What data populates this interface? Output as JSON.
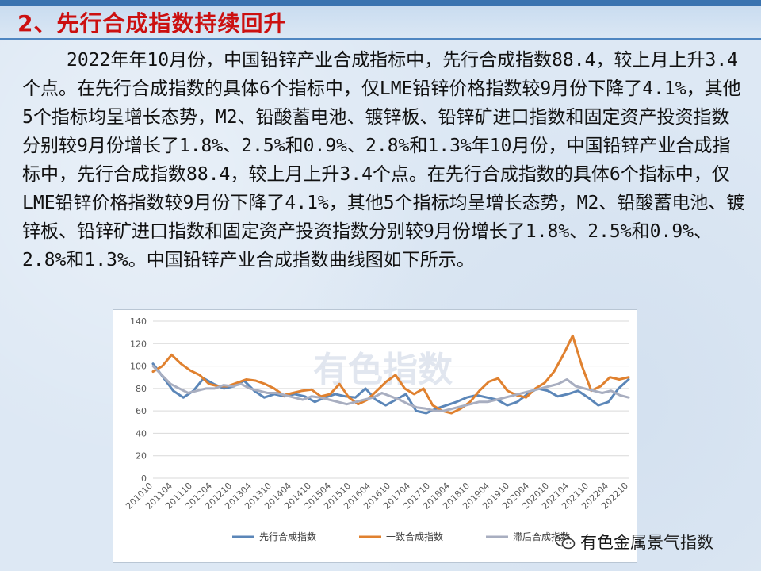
{
  "slide": {
    "title": "2、先行合成指数持续回升",
    "body": "2022年年10月份，中国铅锌产业合成指标中，先行合成指数88.4，较上月上升3.4个点。在先行合成指数的具体6个指标中，仅LME铅锌价格指数较9月份下降了4.1%，其他5个指标均呈增长态势，M2、铅酸蓄电池、镀锌板、铅锌矿进口指数和固定资产投资指数分别较9月份增长了1.8%、2.5%和0.9%、2.8%和1.3%年10月份，中国铅锌产业合成指标中，先行合成指数88.4，较上月上升3.4个点。在先行合成指数的具体6个指标中，仅LME铅锌价格指数较9月份下降了4.1%，其他5个指标均呈增长态势，M2、铅酸蓄电池、镀锌板、铅锌矿进口指数和固定资产投资指数分别较9月份增长了1.8%、2.5%和0.9%、2.8%和1.3%。中国铅锌产业合成指数曲线图如下所示。"
  },
  "footer": {
    "brand": "有色金属景气指数",
    "icon": "wechat-icon"
  },
  "watermark": "有色指数",
  "colors": {
    "title": "#cc1010",
    "leading": "#5b86b8",
    "coincident": "#e0812f",
    "lagging": "#a8aec0"
  },
  "chart_data": {
    "type": "line",
    "title": "",
    "xlabel": "",
    "ylabel": "",
    "ylim": [
      0,
      140
    ],
    "yticks": [
      0,
      20,
      40,
      60,
      80,
      100,
      120,
      140
    ],
    "grid": true,
    "legend_position": "bottom",
    "x_tick_labels": [
      "201010",
      "201104",
      "201110",
      "201204",
      "201210",
      "201304",
      "201310",
      "201404",
      "201410",
      "201504",
      "201510",
      "201604",
      "201610",
      "201704",
      "201710",
      "201804",
      "201810",
      "201904",
      "201910",
      "202004",
      "202010",
      "202104",
      "202110",
      "202204",
      "202210"
    ],
    "series": [
      {
        "name": "先行合成指数",
        "color": "#5b86b8",
        "values": [
          102,
          90,
          78,
          72,
          78,
          89,
          84,
          80,
          82,
          87,
          78,
          72,
          75,
          73,
          75,
          73,
          68,
          72,
          75,
          73,
          72,
          80,
          70,
          65,
          70,
          75,
          60,
          58,
          62,
          65,
          68,
          72,
          74,
          72,
          70,
          65,
          68,
          75,
          80,
          78,
          73,
          75,
          78,
          72,
          65,
          68,
          80,
          88
        ]
      },
      {
        "name": "一致合成指数",
        "color": "#e0812f",
        "values": [
          95,
          100,
          110,
          102,
          96,
          92,
          84,
          82,
          82,
          85,
          88,
          87,
          84,
          80,
          74,
          76,
          78,
          79,
          73,
          75,
          84,
          72,
          66,
          70,
          78,
          86,
          92,
          80,
          75,
          80,
          65,
          60,
          58,
          62,
          68,
          78,
          86,
          89,
          78,
          74,
          72,
          80,
          85,
          95,
          110,
          127,
          100,
          78,
          82,
          90,
          88,
          90
        ]
      },
      {
        "name": "滞后合成指数",
        "color": "#a8aec0",
        "values": [
          100,
          92,
          84,
          80,
          76,
          78,
          80,
          80,
          83,
          82,
          84,
          80,
          78,
          76,
          76,
          74,
          72,
          70,
          73,
          72,
          70,
          68,
          66,
          68,
          70,
          72,
          76,
          73,
          70,
          66,
          63,
          62,
          60,
          60,
          62,
          64,
          66,
          68,
          68,
          70,
          72,
          74,
          76,
          78,
          80,
          82,
          84,
          88,
          82,
          80,
          78,
          76,
          78,
          74,
          72
        ]
      }
    ]
  }
}
